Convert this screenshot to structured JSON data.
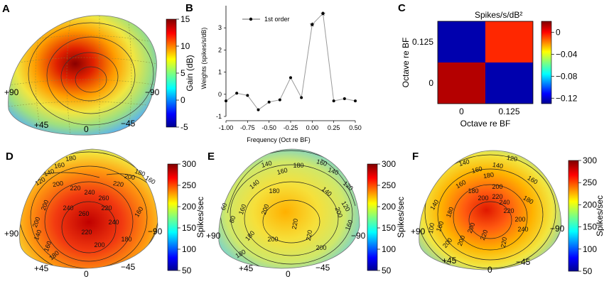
{
  "panels": {
    "A": {
      "label": "A",
      "colorbar_title": "Gain (dB)",
      "colorbar_ticks": [
        15,
        10,
        5,
        0,
        -5
      ],
      "colorbar_range": [
        -5,
        15
      ],
      "azimuth_labels": {
        "left": "+90",
        "leftmid": "+45",
        "center": "0",
        "rightmid": "−45",
        "right": "−90"
      }
    },
    "D": {
      "label": "D",
      "colorbar_title": "Spikes/sec",
      "colorbar_ticks": [
        300,
        250,
        200,
        150,
        100,
        50
      ],
      "colorbar_range": [
        50,
        300
      ],
      "contours": [
        "180",
        "160",
        "140",
        "120",
        "200",
        "220",
        "240",
        "260",
        "220",
        "200",
        "180",
        "160",
        "200",
        "240",
        "260",
        "220",
        "200",
        "240",
        "220",
        "200",
        "180",
        "160",
        "140",
        "180",
        "160"
      ],
      "azimuth_labels": {
        "left": "+90",
        "leftmid": "+45",
        "center": "0",
        "rightmid": "−45",
        "right": "−90"
      }
    },
    "E": {
      "label": "E",
      "colorbar_title": "Spikes/sec",
      "colorbar_ticks": [
        300,
        250,
        200,
        150,
        100,
        50
      ],
      "colorbar_range": [
        50,
        300
      ],
      "contours": [
        "140",
        "160",
        "180",
        "160",
        "140",
        "120",
        "80",
        "60",
        "180",
        "200",
        "220",
        "220",
        "200",
        "200",
        "180",
        "160",
        "140",
        "120",
        "140",
        "160",
        "180",
        "200"
      ],
      "azimuth_labels": {
        "left": "+90",
        "leftmid": "+45",
        "center": "0",
        "rightmid": "−45",
        "right": "−90"
      }
    },
    "F": {
      "label": "F",
      "colorbar_title": "Spikes/sec",
      "colorbar_ticks": [
        300,
        250,
        200,
        150,
        100,
        50
      ],
      "colorbar_range": [
        50,
        300
      ],
      "contours": [
        "140",
        "160",
        "180",
        "200",
        "220",
        "200",
        "180",
        "160",
        "240",
        "220",
        "200",
        "180",
        "160",
        "140",
        "120",
        "200",
        "220",
        "220",
        "200",
        "240",
        "180",
        "200",
        "160",
        "140",
        "100"
      ],
      "azimuth_labels": {
        "left": "+90",
        "leftmid": "+45",
        "center": "0",
        "rightmid": "−45",
        "right": "−90"
      }
    },
    "C": {
      "label": "C",
      "colorbar_title": "Spikes/s/dB²",
      "colorbar_ticks": [
        "0",
        "−0.04",
        "−0.08",
        "−0.12"
      ],
      "colorbar_range": [
        -0.13,
        0.02
      ],
      "ylabel": "Octave re BF",
      "xlabel": "Octave re BF"
    }
  },
  "chart_data": [
    {
      "panel": "B",
      "label": "B",
      "type": "line",
      "title": "",
      "xlabel": "Frequency (Oct re BF)",
      "ylabel": "Weights (spikes/s/dB)",
      "legend": "1st order",
      "legend_position": "top-left",
      "xlim": [
        -1.0,
        0.5
      ],
      "ylim": [
        -1,
        4
      ],
      "xticks": [
        "-1.00",
        "-0.75",
        "-0.50",
        "-0.25",
        "0.00",
        "0.25",
        "0.50"
      ],
      "yticks": [
        "-1",
        "0",
        "1",
        "2",
        "3"
      ],
      "x": [
        -1.0,
        -0.875,
        -0.75,
        -0.625,
        -0.5,
        -0.375,
        -0.25,
        -0.125,
        0.0,
        0.125,
        0.25,
        0.375,
        0.5
      ],
      "y": [
        -0.3,
        0.05,
        -0.05,
        -0.7,
        -0.35,
        -0.25,
        0.75,
        -0.15,
        3.15,
        3.65,
        -0.3,
        -0.2,
        -0.3
      ],
      "starred_x": [
        0.0,
        0.125
      ],
      "color": "#9a9a9a"
    },
    {
      "panel": "C",
      "type": "heatmap",
      "xlabel": "Octave re BF",
      "ylabel": "Octave re BF",
      "x_categories": [
        "0",
        "0.125"
      ],
      "y_categories": [
        "0",
        "0.125"
      ],
      "values": [
        [
          0.012,
          -0.125
        ],
        [
          -0.125,
          -0.005
        ]
      ]
    }
  ]
}
